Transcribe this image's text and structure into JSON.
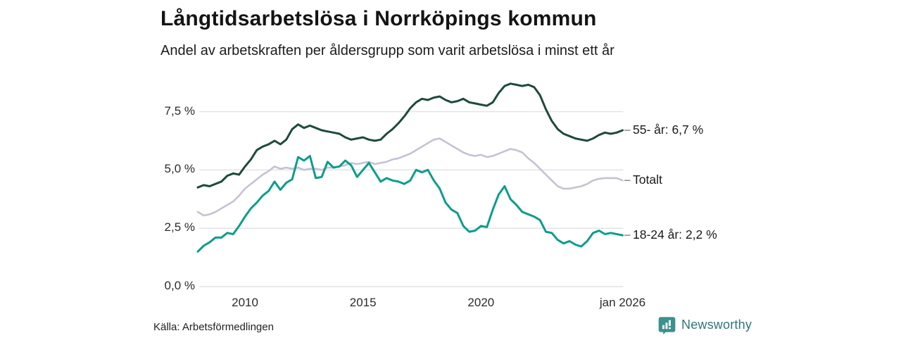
{
  "header": {
    "title": "Långtidsarbetslösa i Norrköpings kommun",
    "subtitle": "Andel av arbetskraften per åldersgrupp som varit arbetslösa i minst ett år"
  },
  "footer": {
    "source": "Källa: Arbetsförmedlingen",
    "brand": "Newsworthy",
    "brand_icon": "newsworthy-chart-bubble-icon"
  },
  "colors": {
    "series_55": "#1e4a3c",
    "series_total": "#c6c2d4",
    "series_18_24": "#0d9d8b",
    "gridline": "#e2e2e7",
    "tick_dash": "#828282",
    "text": "#1a1a1a",
    "brand_teal": "#3b918b"
  },
  "chart_data": {
    "type": "line",
    "title": "Långtidsarbetslösa i Norrköpings kommun",
    "subtitle": "Andel av arbetskraften per åldersgrupp som varit arbetslösa i minst ett år",
    "grid": true,
    "legend_position": "right-end-labels",
    "x_start": 2008.0,
    "x_step": 0.25,
    "x_axis": {
      "range": [
        2008.0,
        2026.0
      ],
      "ticks": [
        {
          "x": 2010,
          "label": "2010"
        },
        {
          "x": 2015,
          "label": "2015"
        },
        {
          "x": 2020,
          "label": "2020"
        },
        {
          "x": 2026,
          "label": "jan 2026"
        }
      ]
    },
    "y_axis": {
      "range": [
        0,
        9.3
      ],
      "unit": "%",
      "ticks": [
        {
          "v": 7.5,
          "label": "7,5 %"
        },
        {
          "v": 5.0,
          "label": "5,0 %"
        },
        {
          "v": 2.5,
          "label": "2,5 %"
        },
        {
          "v": 0.0,
          "label": "0,0 %"
        }
      ]
    },
    "series": [
      {
        "key": "55-ar",
        "name": "55- år",
        "end_label": "55- år: 6,7 %",
        "last_value": "6,7 %",
        "color": "#1e4a3c",
        "stroke_width": 3,
        "values": [
          4.25,
          4.35,
          4.3,
          4.4,
          4.5,
          4.75,
          4.85,
          4.8,
          5.15,
          5.45,
          5.85,
          6.0,
          6.1,
          6.25,
          6.1,
          6.3,
          6.75,
          6.95,
          6.8,
          6.9,
          6.8,
          6.7,
          6.65,
          6.6,
          6.55,
          6.4,
          6.3,
          6.35,
          6.4,
          6.3,
          6.25,
          6.3,
          6.55,
          6.75,
          7.0,
          7.3,
          7.65,
          7.9,
          8.05,
          8.0,
          8.1,
          8.15,
          8.0,
          7.9,
          7.95,
          8.05,
          7.9,
          7.85,
          7.8,
          7.75,
          7.9,
          8.3,
          8.6,
          8.7,
          8.65,
          8.6,
          8.65,
          8.55,
          8.2,
          7.6,
          7.1,
          6.75,
          6.55,
          6.45,
          6.35,
          6.3,
          6.25,
          6.35,
          6.5,
          6.6,
          6.55,
          6.6,
          6.7
        ]
      },
      {
        "key": "totalt",
        "name": "Totalt",
        "end_label": "Totalt",
        "last_value": "",
        "color": "#c6c2d4",
        "stroke_width": 2.6,
        "values": [
          3.2,
          3.05,
          3.1,
          3.2,
          3.35,
          3.5,
          3.65,
          3.9,
          4.2,
          4.4,
          4.6,
          4.8,
          4.95,
          5.15,
          5.05,
          5.1,
          5.05,
          5.1,
          5.0,
          5.05,
          5.05,
          5.0,
          5.1,
          5.1,
          5.15,
          5.2,
          5.3,
          5.25,
          5.3,
          5.35,
          5.25,
          5.3,
          5.35,
          5.45,
          5.5,
          5.6,
          5.7,
          5.85,
          6.0,
          6.15,
          6.3,
          6.35,
          6.2,
          6.05,
          5.9,
          5.75,
          5.65,
          5.6,
          5.65,
          5.55,
          5.6,
          5.7,
          5.8,
          5.9,
          5.85,
          5.75,
          5.5,
          5.3,
          5.05,
          4.8,
          4.55,
          4.3,
          4.2,
          4.2,
          4.25,
          4.3,
          4.4,
          4.55,
          4.62,
          4.65,
          4.65,
          4.65,
          4.55
        ]
      },
      {
        "key": "18-24-ar",
        "name": "18-24 år",
        "end_label": "18-24 år: 2,2 %",
        "last_value": "2,2 %",
        "color": "#0d9d8b",
        "stroke_width": 3,
        "values": [
          1.5,
          1.75,
          1.9,
          2.1,
          2.1,
          2.3,
          2.25,
          2.6,
          3.0,
          3.35,
          3.6,
          3.9,
          4.1,
          4.5,
          4.15,
          4.45,
          4.6,
          5.55,
          5.4,
          5.6,
          4.65,
          4.7,
          5.35,
          5.1,
          5.15,
          5.4,
          5.2,
          4.7,
          5.0,
          5.3,
          4.9,
          4.5,
          4.65,
          4.55,
          4.5,
          4.4,
          4.55,
          5.0,
          4.9,
          5.0,
          4.55,
          4.2,
          3.6,
          3.3,
          3.15,
          2.6,
          2.35,
          2.4,
          2.6,
          2.55,
          3.3,
          3.95,
          4.3,
          3.75,
          3.5,
          3.2,
          3.1,
          3.0,
          2.85,
          2.35,
          2.3,
          2.0,
          1.85,
          1.95,
          1.8,
          1.72,
          1.95,
          2.3,
          2.4,
          2.25,
          2.3,
          2.25,
          2.2
        ]
      }
    ]
  }
}
